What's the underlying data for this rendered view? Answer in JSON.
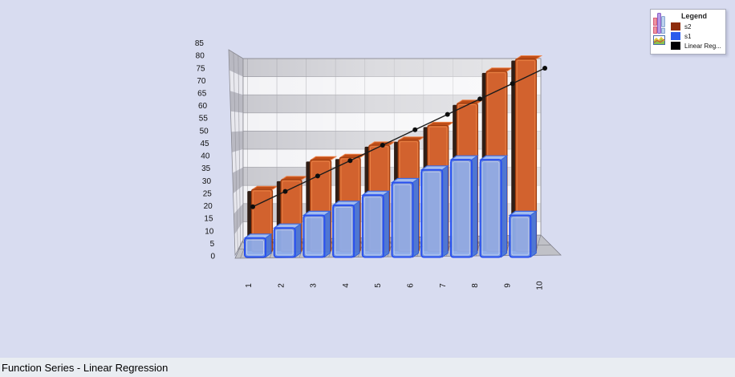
{
  "title": "Function Series - Linear Regression",
  "legend": {
    "title": "Legend",
    "items": [
      {
        "label": "s2",
        "color": "#8e2c0d"
      },
      {
        "label": "s1",
        "color": "#2b5cec"
      },
      {
        "label": "Linear Reg...",
        "color": "#000000"
      }
    ]
  },
  "chart_data": {
    "type": "bar",
    "projection": "3d",
    "title": "Function Series - Linear Regression",
    "categories": [
      "1",
      "2",
      "3",
      "4",
      "5",
      "6",
      "7",
      "8",
      "9",
      "10"
    ],
    "series": [
      {
        "name": "s2",
        "type": "bar",
        "color": "#d2622e",
        "values": [
          26,
          30,
          38,
          39,
          44,
          46,
          52,
          61,
          74,
          79
        ]
      },
      {
        "name": "s1",
        "type": "bar",
        "color": "#2b5cec",
        "values": [
          8,
          12,
          17,
          21,
          25,
          30,
          35,
          39,
          39,
          17
        ]
      },
      {
        "name": "Linear Regression",
        "type": "line",
        "color": "#111111",
        "values": [
          21,
          27,
          33,
          39,
          45,
          51,
          57,
          63,
          69,
          75
        ]
      }
    ],
    "xlabel": "",
    "ylabel": "",
    "ylim": [
      0,
      85
    ],
    "yticks": [
      0,
      5,
      10,
      15,
      20,
      25,
      30,
      35,
      40,
      45,
      50,
      55,
      60,
      65,
      70,
      75,
      80,
      85
    ],
    "grid": true,
    "legend_position": "top-right"
  },
  "colors": {
    "background": "#d8dcf0",
    "bottom_bar": "#e9edf2",
    "wall_light": "#f3f3f6",
    "wall_dark": "#c9c9cf",
    "lwall_light": "#e8e8ee",
    "lwall_dark": "#b9b9c2",
    "floor": "#c0c1c7",
    "grid_line": "#94949c",
    "bar_s2_face": "#d2622e",
    "bar_s2_top": "#bf4d17",
    "bar_s2_rim": "#ee8248",
    "bar_s2_side": "#301e16",
    "bar_s2_stroke": "#9c3c0e",
    "bar_s1_face": "#7498e4",
    "bar_s1_top": "#a3bcee",
    "bar_s1_side": "#4a79da",
    "bar_s1_stroke": "#2950ef",
    "line": "#1c1c1c",
    "tick_text": "#111111"
  }
}
